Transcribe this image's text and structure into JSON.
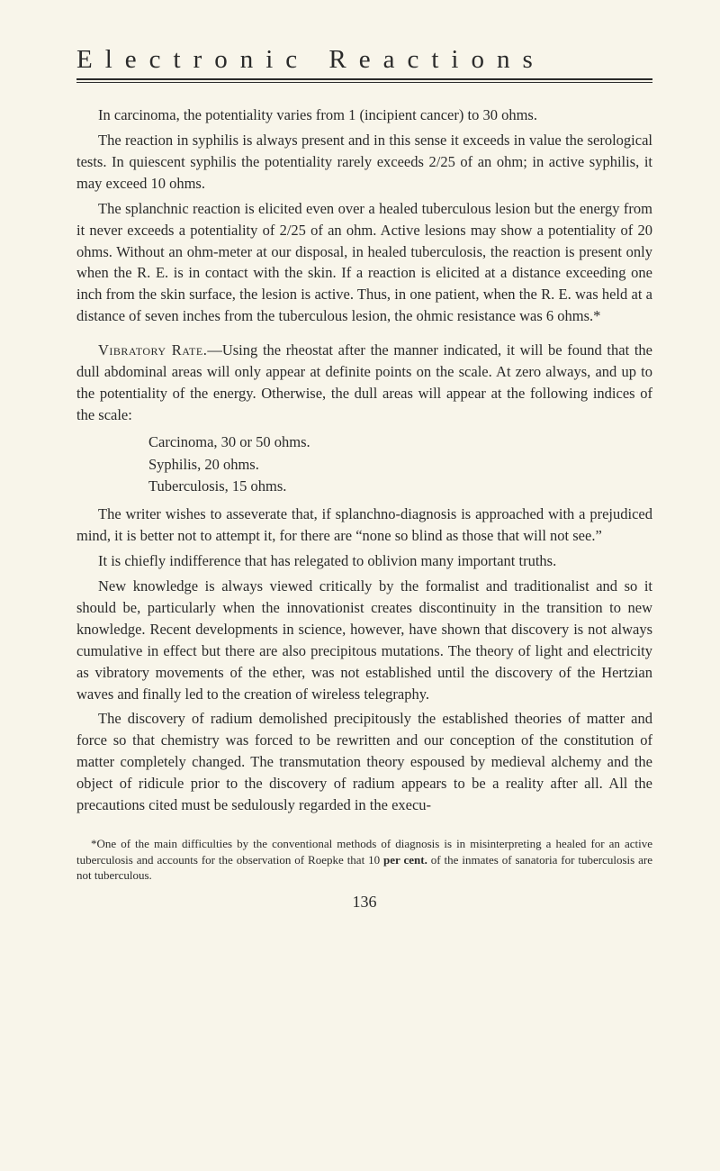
{
  "header": {
    "title": "Electronic Reactions"
  },
  "paragraphs": {
    "p1": "In carcinoma, the potentiality varies from 1 (incipient cancer) to 30 ohms.",
    "p2": "The reaction in syphilis is always present and in this sense it exceeds in value the serological tests. In quiescent syphilis the potentiality rarely exceeds 2/25 of an ohm; in active syphilis, it may exceed 10 ohms.",
    "p3": "The splanchnic reaction is elicited even over a healed tuberculous lesion but the energy from it never exceeds a potentiality of 2/25 of an ohm. Active lesions may show a potentiality of 20 ohms. Without an ohm-meter at our disposal, in healed tuberculosis, the reaction is present only when the R. E. is in contact with the skin. If a reaction is elicited at a distance exceeding one inch from the skin surface, the lesion is active. Thus, in one patient, when the R. E. was held at a distance of seven inches from the tuberculous lesion, the ohmic resistance was 6 ohms.*",
    "p4_lead": "Vibratory Rate.",
    "p4_rest": "—Using the rheostat after the manner indicated, it will be found that the dull abdominal areas will only appear at definite points on the scale. At zero always, and up to the potentiality of the energy. Otherwise, the dull areas will appear at the following indices of the scale:",
    "list": {
      "i1": "Carcinoma, 30 or 50 ohms.",
      "i2": "Syphilis, 20 ohms.",
      "i3": "Tuberculosis, 15 ohms."
    },
    "p5": "The writer wishes to asseverate that, if splanchno-diagnosis is approached with a prejudiced mind, it is better not to attempt it, for there are “none so blind as those that will not see.”",
    "p6": "It is chiefly indifference that has relegated to oblivion many important truths.",
    "p7": "New knowledge is always viewed critically by the formalist and traditionalist and so it should be, particularly when the innovationist creates discontinuity in the transition to new knowledge. Recent developments in science, however, have shown that discovery is not always cumulative in effect but there are also precipitous mutations. The theory of light and electricity as vibratory movements of the ether, was not established until the discovery of the Hertzian waves and finally led to the creation of wireless telegraphy.",
    "p8": "The discovery of radium demolished precipitously the established theories of matter and force so that chemistry was forced to be rewritten and our conception of the constitution of matter completely changed. The transmutation theory espoused by medieval alchemy and the object of ridicule prior to the discovery of radium appears to be a reality after all. All the precautions cited must be sedulously regarded in the execu-"
  },
  "footnote": {
    "pre": "*One of the main difficulties by the conventional methods of diagnosis is in misinterpreting a healed for an active tuberculosis and accounts for the observation of Roepke that 10 ",
    "bold": "per cent.",
    "post": " of the inmates of sanatoria for tuberculosis are not tuberculous."
  },
  "pagenum": "136"
}
